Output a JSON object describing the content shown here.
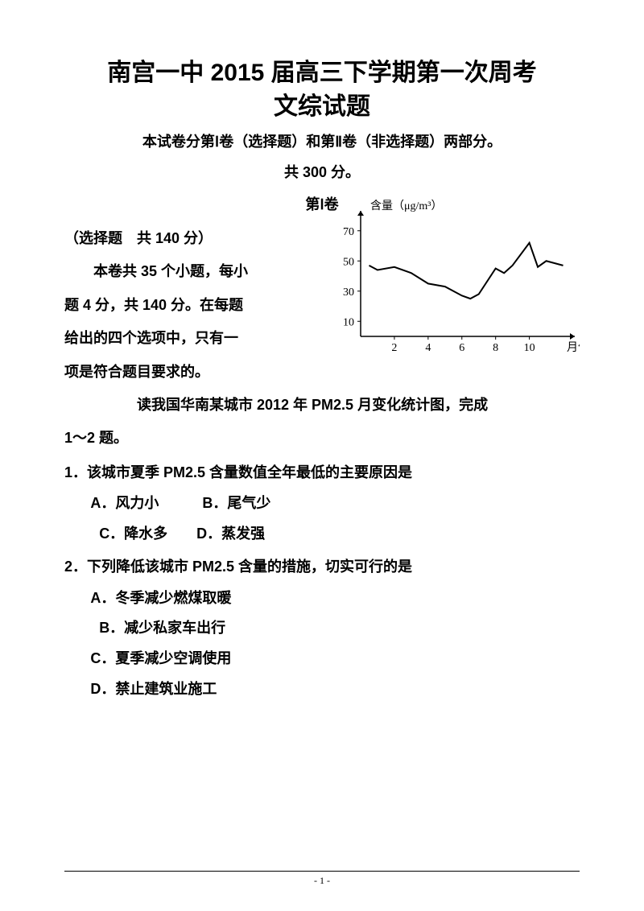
{
  "header": {
    "title_line1": "南宫一中 2015 届高三下学期第一次周考",
    "title_line2": "文综试题",
    "subtitle": "本试卷分第Ⅰ卷（选择题）和第Ⅱ卷（非选择题）两部分。",
    "total_score": "共 300 分。",
    "section_label": "第Ⅰ卷"
  },
  "section_intro": {
    "line1": "（选择题　共 140 分）",
    "line2": "本卷共 35 个小题，每小",
    "line3": "题 4 分，共 140 分。在每题",
    "line4": "给出的四个选项中，只有一",
    "line5": "项是符合题目要求的。",
    "prompt_a": "读我国华南某城市 2012 年 PM2.5 月变化统计图，完成",
    "prompt_b": "1～2 题。"
  },
  "chart": {
    "type": "line",
    "y_label": "含量（μg/m³）",
    "x_label": "月份",
    "y_ticks": [
      10,
      30,
      50,
      70
    ],
    "x_ticks": [
      2,
      4,
      6,
      8,
      10
    ],
    "ylim": [
      0,
      80
    ],
    "xlim": [
      0,
      12.5
    ],
    "line_color": "#000000",
    "axis_color": "#000000",
    "background": "#ffffff",
    "data": [
      {
        "x": 0.5,
        "y": 47
      },
      {
        "x": 1,
        "y": 44
      },
      {
        "x": 2,
        "y": 46
      },
      {
        "x": 3,
        "y": 42
      },
      {
        "x": 4,
        "y": 35
      },
      {
        "x": 5,
        "y": 33
      },
      {
        "x": 6,
        "y": 27
      },
      {
        "x": 6.5,
        "y": 25
      },
      {
        "x": 7,
        "y": 28
      },
      {
        "x": 8,
        "y": 45
      },
      {
        "x": 8.5,
        "y": 42
      },
      {
        "x": 9,
        "y": 47
      },
      {
        "x": 10,
        "y": 62
      },
      {
        "x": 10.5,
        "y": 46
      },
      {
        "x": 11,
        "y": 50
      },
      {
        "x": 12,
        "y": 47
      }
    ]
  },
  "q1": {
    "stem": "1．该城市夏季 PM2.5 含量数值全年最低的主要原因是",
    "opt_row1": "A．风力小　　　B．尾气少",
    "opt_row2": "C．降水多　　D．蒸发强"
  },
  "q2": {
    "stem": "2．下列降低该城市 PM2.5 含量的措施，切实可行的是",
    "opt_a": "A．冬季减少燃煤取暖",
    "opt_b": "B．减少私家车出行",
    "opt_c": "C．夏季减少空调使用",
    "opt_d": "D．禁止建筑业施工"
  },
  "footer": {
    "page": "- 1 -"
  }
}
